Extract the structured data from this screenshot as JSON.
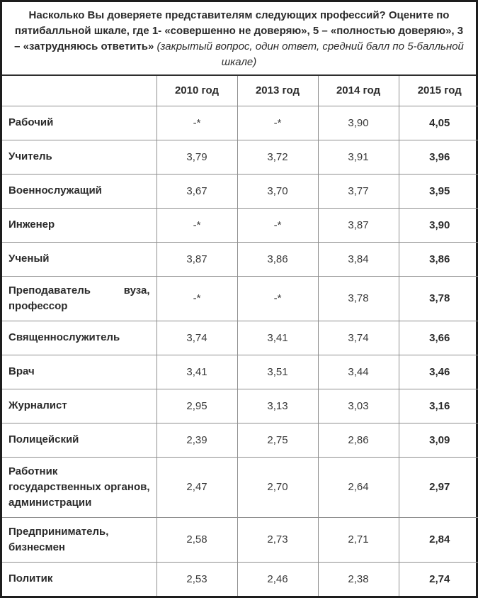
{
  "chart_data": {
    "type": "table",
    "title_bold": "Насколько Вы доверяете представителям следующих профессий? Оцените по пятибалльной шкале, где 1- «совершенно не доверяю», 5 – «полностью доверяю», 3 – «затрудняюсь ответить»",
    "title_italic": "(закрытый вопрос, один ответ, средний балл по 5-балльной шкале)",
    "columns": [
      "2010 год",
      "2013 год",
      "2014 год",
      "2015 год"
    ],
    "missing_marker": "-*",
    "value_scale": [
      1,
      5
    ],
    "rows": [
      {
        "label": "Рабочий",
        "values": [
          "-*",
          "-*",
          "3,90",
          "4,05"
        ]
      },
      {
        "label": "Учитель",
        "values": [
          "3,79",
          "3,72",
          "3,91",
          "3,96"
        ]
      },
      {
        "label": "Военнослужащий",
        "values": [
          "3,67",
          "3,70",
          "3,77",
          "3,95"
        ]
      },
      {
        "label": "Инженер",
        "values": [
          "-*",
          "-*",
          "3,87",
          "3,90"
        ]
      },
      {
        "label": "Ученый",
        "values": [
          "3,87",
          "3,86",
          "3,84",
          "3,86"
        ]
      },
      {
        "label": "Преподаватель вуза, профессор",
        "values": [
          "-*",
          "-*",
          "3,78",
          "3,78"
        ]
      },
      {
        "label": "Священнослужитель",
        "values": [
          "3,74",
          "3,41",
          "3,74",
          "3,66"
        ]
      },
      {
        "label": "Врач",
        "values": [
          "3,41",
          "3,51",
          "3,44",
          "3,46"
        ]
      },
      {
        "label": "Журналист",
        "values": [
          "2,95",
          "3,13",
          "3,03",
          "3,16"
        ]
      },
      {
        "label": "Полицейский",
        "values": [
          "2,39",
          "2,75",
          "2,86",
          "3,09"
        ]
      },
      {
        "label": "Работник государственных органов, администрации",
        "values": [
          "2,47",
          "2,70",
          "2,64",
          "2,97"
        ]
      },
      {
        "label": "Предприниматель, бизнесмен",
        "values": [
          "2,58",
          "2,73",
          "2,71",
          "2,84"
        ]
      },
      {
        "label": "Политик",
        "values": [
          "2,53",
          "2,46",
          "2,38",
          "2,74"
        ]
      }
    ]
  },
  "colors": {
    "outer_border": "#1d1d1d",
    "inner_border": "#8f8f8f",
    "text": "#2b2b2b",
    "background": "#ffffff"
  }
}
